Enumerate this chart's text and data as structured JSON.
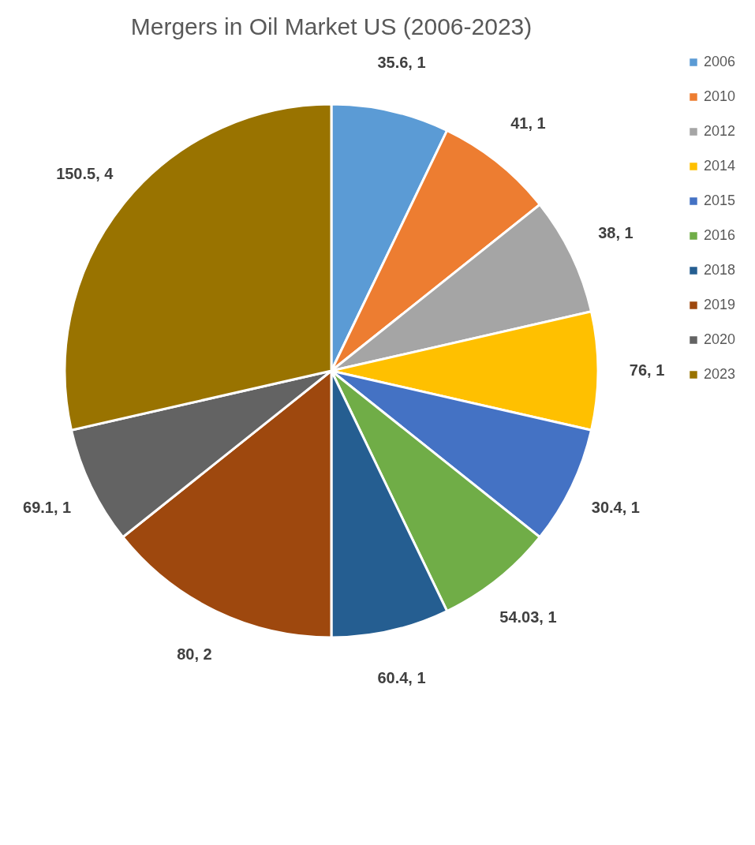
{
  "chart_data": {
    "type": "pie",
    "title": "Mergers in Oil Market US  (2006-2023)",
    "categories": [
      "2006",
      "2010",
      "2012",
      "2014",
      "2015",
      "2016",
      "2018",
      "2019",
      "2020",
      "2023"
    ],
    "values": [
      1,
      1,
      1,
      1,
      1,
      1,
      1,
      2,
      1,
      4
    ],
    "value_labels": [
      "35.6, 1",
      "41, 1",
      "38, 1",
      "76, 1",
      "30.4, 1",
      "54.03, 1",
      "60.4, 1",
      "80, 2",
      "69.1, 1",
      "150.5, 4"
    ],
    "colors": [
      "#5b9bd5",
      "#ed7d31",
      "#a5a5a5",
      "#ffc000",
      "#4472c4",
      "#70ad47",
      "#255e91",
      "#9e480e",
      "#636363",
      "#997300"
    ],
    "legend": "right"
  }
}
